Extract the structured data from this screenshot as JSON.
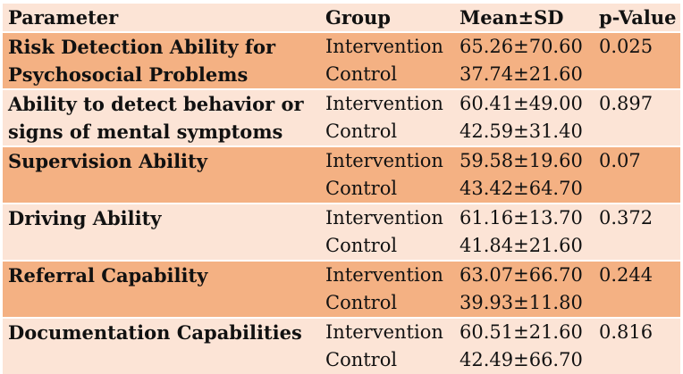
{
  "table": {
    "headers": [
      "Parameter",
      "Group",
      "Mean±SD",
      "p-Value"
    ],
    "rows": [
      {
        "parameter_lines": [
          "Risk Detection Ability for",
          "Psychosocial Problems"
        ],
        "intervention": {
          "group": "Intervention",
          "mean_sd": "65.26±70.60"
        },
        "control": {
          "group": "Control",
          "mean_sd": "37.74±21.60"
        },
        "p_value": "0.025"
      },
      {
        "parameter_lines": [
          "Ability to detect behavior or",
          "signs of mental symptoms"
        ],
        "intervention": {
          "group": "Intervention",
          "mean_sd": "60.41±49.00"
        },
        "control": {
          "group": "Control",
          "mean_sd": "42.59±31.40"
        },
        "p_value": "0.897"
      },
      {
        "parameter_lines": [
          "Supervision Ability"
        ],
        "intervention": {
          "group": "Intervention",
          "mean_sd": "59.58±19.60"
        },
        "control": {
          "group": "Control",
          "mean_sd": "43.42±64.70"
        },
        "p_value": "0.07"
      },
      {
        "parameter_lines": [
          "Driving Ability"
        ],
        "intervention": {
          "group": "Intervention",
          "mean_sd": "61.16±13.70"
        },
        "control": {
          "group": "Control",
          "mean_sd": "41.84±21.60"
        },
        "p_value": "0.372"
      },
      {
        "parameter_lines": [
          "Referral Capability"
        ],
        "intervention": {
          "group": "Intervention",
          "mean_sd": "63.07±66.70"
        },
        "control": {
          "group": "Control",
          "mean_sd": "39.93±11.80"
        },
        "p_value": "0.244"
      },
      {
        "parameter_lines": [
          "Documentation Capabilities"
        ],
        "intervention": {
          "group": "Intervention",
          "mean_sd": "60.51±21.60"
        },
        "control": {
          "group": "Control",
          "mean_sd": "42.49±66.70"
        },
        "p_value": "0.816"
      }
    ],
    "colors": {
      "header_bg": "#fce4d6",
      "row_dark": "#f4b183",
      "row_light": "#fce4d6"
    }
  }
}
